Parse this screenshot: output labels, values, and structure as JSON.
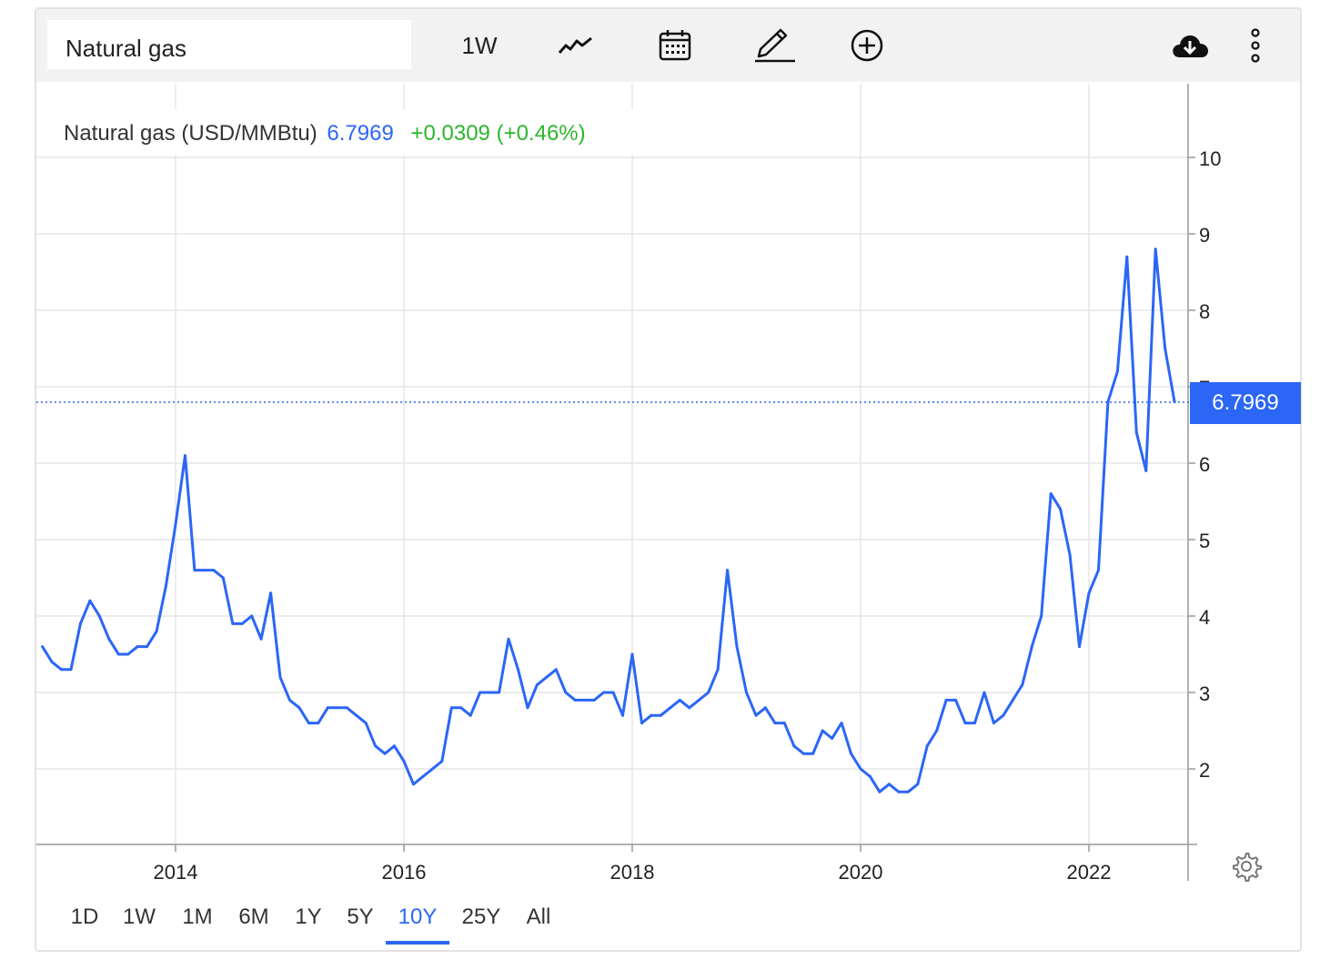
{
  "toolbar": {
    "symbol": "Natural gas",
    "interval": "1W",
    "icons": [
      "line-chart-icon",
      "calendar-icon",
      "pencil-icon",
      "add-circle-icon",
      "cloud-download-icon",
      "more-vertical-icon"
    ]
  },
  "legend": {
    "name": "Natural gas (USD/MMBtu)",
    "price": "6.7969",
    "change": "+0.0309 (+0.46%)"
  },
  "price_tag": "6.7969",
  "ranges": [
    "1D",
    "1W",
    "1M",
    "6M",
    "1Y",
    "5Y",
    "10Y",
    "25Y",
    "All"
  ],
  "active_range": "10Y",
  "colors": {
    "line": "#2b66f6",
    "up": "#2bb72b",
    "grid": "#e6e6e6",
    "toolbar": "#f2f2f2"
  },
  "chart_data": {
    "type": "line",
    "title": "",
    "xlabel": "",
    "ylabel": "",
    "x_ticks": [
      "2014",
      "2016",
      "2018",
      "2020",
      "2022"
    ],
    "y_ticks": [
      2,
      3,
      4,
      5,
      6,
      7,
      8,
      9,
      10
    ],
    "ylim": [
      1.0,
      10.0
    ],
    "xlim": [
      "2012-11",
      "2022-10"
    ],
    "grid": true,
    "last_value": 6.7969,
    "series": [
      {
        "name": "Natural gas (USD/MMBtu)",
        "x": [
          "2012-11",
          "2012-12",
          "2013-01",
          "2013-02",
          "2013-03",
          "2013-04",
          "2013-05",
          "2013-06",
          "2013-07",
          "2013-08",
          "2013-09",
          "2013-10",
          "2013-11",
          "2013-12",
          "2014-01",
          "2014-02",
          "2014-03",
          "2014-04",
          "2014-05",
          "2014-06",
          "2014-07",
          "2014-08",
          "2014-09",
          "2014-10",
          "2014-11",
          "2014-12",
          "2015-01",
          "2015-02",
          "2015-03",
          "2015-04",
          "2015-05",
          "2015-06",
          "2015-07",
          "2015-08",
          "2015-09",
          "2015-10",
          "2015-11",
          "2015-12",
          "2016-01",
          "2016-02",
          "2016-03",
          "2016-04",
          "2016-05",
          "2016-06",
          "2016-07",
          "2016-08",
          "2016-09",
          "2016-10",
          "2016-11",
          "2016-12",
          "2017-01",
          "2017-02",
          "2017-03",
          "2017-04",
          "2017-05",
          "2017-06",
          "2017-07",
          "2017-08",
          "2017-09",
          "2017-10",
          "2017-11",
          "2017-12",
          "2018-01",
          "2018-02",
          "2018-03",
          "2018-04",
          "2018-05",
          "2018-06",
          "2018-07",
          "2018-08",
          "2018-09",
          "2018-10",
          "2018-11",
          "2018-12",
          "2019-01",
          "2019-02",
          "2019-03",
          "2019-04",
          "2019-05",
          "2019-06",
          "2019-07",
          "2019-08",
          "2019-09",
          "2019-10",
          "2019-11",
          "2019-12",
          "2020-01",
          "2020-02",
          "2020-03",
          "2020-04",
          "2020-05",
          "2020-06",
          "2020-07",
          "2020-08",
          "2020-09",
          "2020-10",
          "2020-11",
          "2020-12",
          "2021-01",
          "2021-02",
          "2021-03",
          "2021-04",
          "2021-05",
          "2021-06",
          "2021-07",
          "2021-08",
          "2021-09",
          "2021-10",
          "2021-11",
          "2021-12",
          "2022-01",
          "2022-02",
          "2022-03",
          "2022-04",
          "2022-05",
          "2022-06",
          "2022-07",
          "2022-08",
          "2022-09",
          "2022-10"
        ],
        "values": [
          3.6,
          3.4,
          3.3,
          3.3,
          3.9,
          4.2,
          4.0,
          3.7,
          3.5,
          3.5,
          3.6,
          3.6,
          3.8,
          4.4,
          5.2,
          6.1,
          4.6,
          4.6,
          4.6,
          4.5,
          3.9,
          3.9,
          4.0,
          3.7,
          4.3,
          3.2,
          2.9,
          2.8,
          2.6,
          2.6,
          2.8,
          2.8,
          2.8,
          2.7,
          2.6,
          2.3,
          2.2,
          2.3,
          2.1,
          1.8,
          1.9,
          2.0,
          2.1,
          2.8,
          2.8,
          2.7,
          3.0,
          3.0,
          3.0,
          3.7,
          3.3,
          2.8,
          3.1,
          3.2,
          3.3,
          3.0,
          2.9,
          2.9,
          2.9,
          3.0,
          3.0,
          2.7,
          3.5,
          2.6,
          2.7,
          2.7,
          2.8,
          2.9,
          2.8,
          2.9,
          3.0,
          3.3,
          4.6,
          3.6,
          3.0,
          2.7,
          2.8,
          2.6,
          2.6,
          2.3,
          2.2,
          2.2,
          2.5,
          2.4,
          2.6,
          2.2,
          2.0,
          1.9,
          1.7,
          1.8,
          1.7,
          1.7,
          1.8,
          2.3,
          2.5,
          2.9,
          2.9,
          2.6,
          2.6,
          3.0,
          2.6,
          2.7,
          2.9,
          3.1,
          3.6,
          4.0,
          5.6,
          5.4,
          4.8,
          3.6,
          4.3,
          4.6,
          6.8,
          7.2,
          8.7,
          6.4,
          5.9,
          8.8,
          7.5,
          6.8
        ]
      }
    ]
  }
}
